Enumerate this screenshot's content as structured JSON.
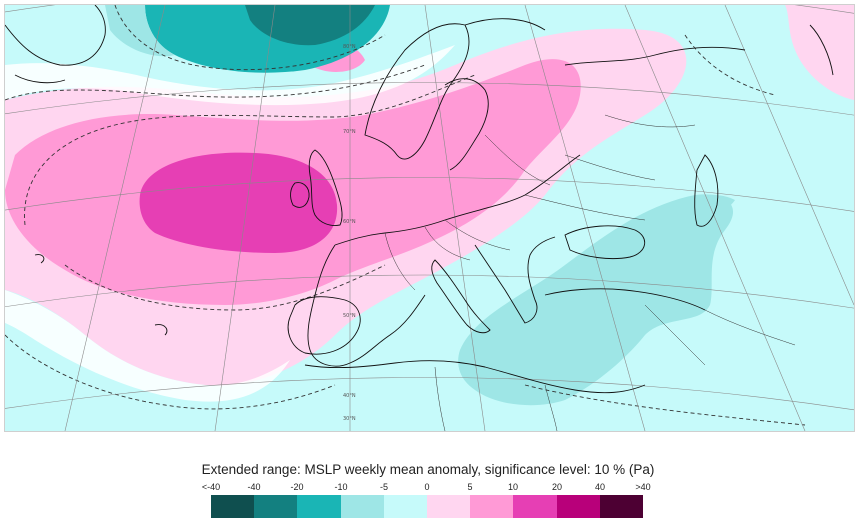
{
  "caption": "Extended range: MSLP weekly mean anomaly, significance level: 10 % (Pa)",
  "legend": {
    "ticks": [
      "<-40",
      "-40",
      "-20",
      "-10",
      "-5",
      "0",
      "5",
      "10",
      "20",
      "40",
      ">40"
    ],
    "colors": [
      "#0f4f4f",
      "#138080",
      "#1ab5b5",
      "#9ee6e6",
      "#c6fafa",
      "#ffd6f0",
      "#ff9ad6",
      "#e63fb4",
      "#b8007a",
      "#4d0033"
    ]
  },
  "map": {
    "ocean_color": "#c6fafa",
    "graticule_labels": [
      "80°N",
      "70°N",
      "60°N",
      "50°N",
      "40°N",
      "30°N"
    ]
  }
}
